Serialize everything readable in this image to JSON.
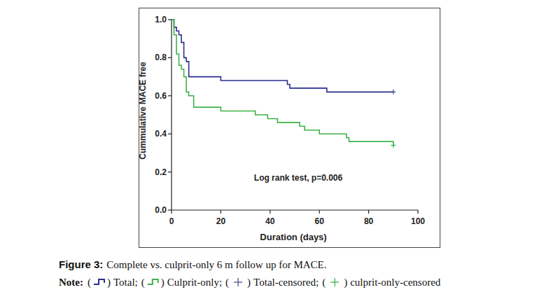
{
  "chart_data": {
    "type": "step",
    "xlabel": "Duration (days)",
    "ylabel": "Cummulative MACE free",
    "annotation": "Log rank test, p=0.006",
    "xlim": [
      0,
      100
    ],
    "xticks": [
      0,
      20,
      40,
      60,
      80,
      100
    ],
    "ylim": [
      0,
      1
    ],
    "yticks": [
      {
        "value": 0,
        "label": "0.0"
      },
      0.2,
      0.4,
      0.6,
      0.8,
      {
        "value": 1,
        "label": "1.0"
      }
    ],
    "grid": false,
    "series": [
      {
        "name": "Total",
        "type": "step",
        "color": "#2b2d8e",
        "x": [
          0,
          1,
          2,
          3,
          4,
          5,
          6,
          7,
          20,
          47,
          48,
          63,
          90
        ],
        "values": [
          1,
          0.96,
          0.94,
          0.92,
          0.88,
          0.8,
          0.78,
          0.7,
          0.68,
          0.66,
          0.64,
          0.62,
          0.62
        ]
      },
      {
        "name": "Culprit-only",
        "type": "step",
        "color": "#3cb44a",
        "x": [
          0,
          1,
          2,
          3,
          4,
          5,
          6,
          7,
          9,
          20,
          34,
          39,
          43,
          52,
          54,
          60,
          71,
          72,
          90
        ],
        "values": [
          1,
          0.92,
          0.82,
          0.76,
          0.74,
          0.7,
          0.62,
          0.6,
          0.54,
          0.52,
          0.5,
          0.48,
          0.46,
          0.44,
          0.42,
          0.4,
          0.38,
          0.36,
          0.34
        ]
      },
      {
        "name": "Total-censored",
        "type": "scatter",
        "marker": "plus",
        "color": "#4a4f8f",
        "x": [
          90
        ],
        "values": [
          0.62
        ]
      },
      {
        "name": "culprit-only-censored",
        "type": "scatter",
        "marker": "plus",
        "color": "#3cb44a",
        "x": [
          90
        ],
        "values": [
          0.34
        ]
      }
    ],
    "caption": {
      "label": "Figure 3:",
      "text": "Complete vs. culprit-only 6 m follow up for MACE."
    },
    "note": {
      "label": "Note:",
      "open": "(",
      "close": ")",
      "separator": ";"
    }
  }
}
